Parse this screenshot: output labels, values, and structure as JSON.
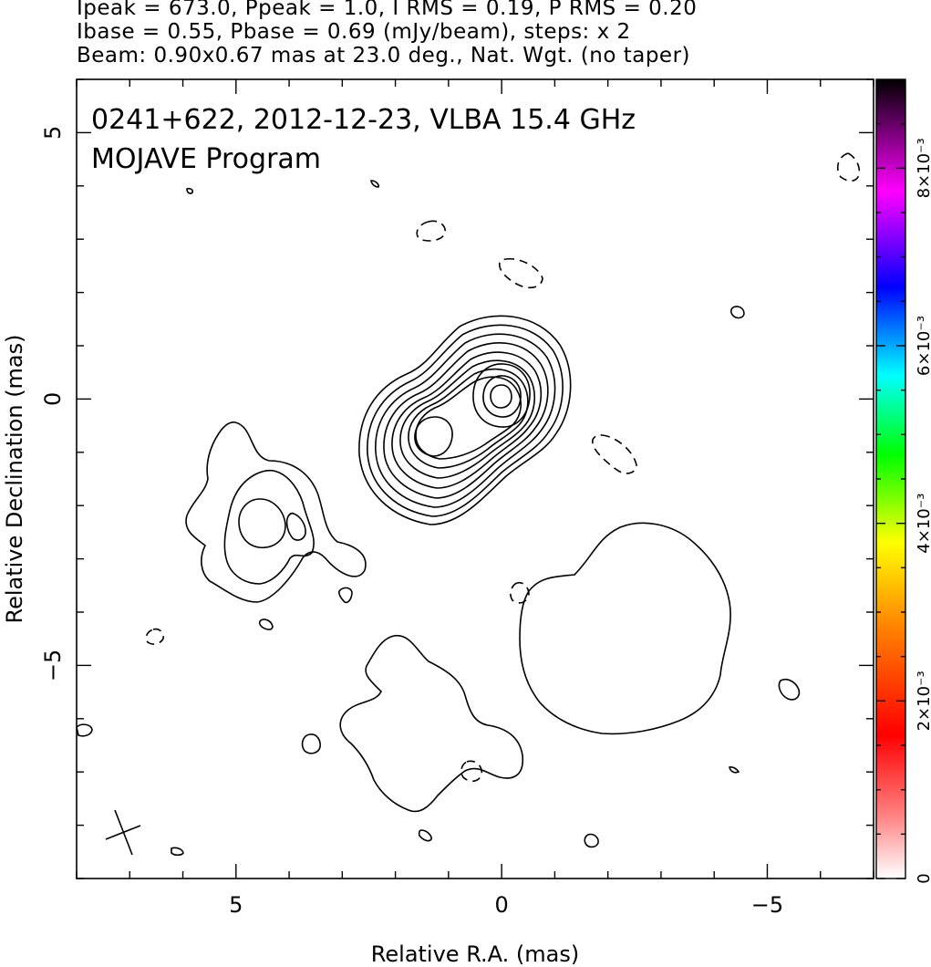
{
  "header": {
    "line1": "Ipeak = 673.0, Ppeak = 1.0, I RMS = 0.19, P RMS = 0.20",
    "line2": "Ibase = 0.55, Pbase = 0.69 (mJy/beam), steps: x 2",
    "line3": "Beam: 0.90x0.67 mas at 23.0 deg., Nat. Wgt. (no taper)"
  },
  "plot": {
    "title_line1": "0241+622, 2012-12-23, VLBA 15.4 GHz",
    "title_line2": "MOJAVE Program"
  },
  "chart_data": {
    "type": "contour",
    "title": "0241+622, 2012-12-23, VLBA 15.4 GHz",
    "subtitle": "MOJAVE Program",
    "xlabel": "Relative R.A. (mas)",
    "ylabel": "Relative Declination (mas)",
    "xlim": [
      8.0,
      -7.0
    ],
    "ylim": [
      -9.0,
      6.0
    ],
    "x_ticks": [
      5,
      0,
      -5
    ],
    "x_tick_labels": [
      "5",
      "0",
      "−5"
    ],
    "y_ticks": [
      5,
      0,
      -5
    ],
    "y_tick_labels": [
      "5",
      "0",
      "−5"
    ],
    "colorbar": {
      "range": [
        0,
        0.009
      ],
      "ticks": [
        0,
        0.002,
        0.004,
        0.006,
        0.008
      ],
      "tick_labels": [
        "0",
        "2×10⁻³",
        "4×10⁻³",
        "6×10⁻³",
        "8×10⁻³"
      ],
      "colors": [
        "#ffffff",
        "#ff0000",
        "#ff8800",
        "#ffff00",
        "#00ff00",
        "#00ffff",
        "#0000ff",
        "#ff00ff",
        "#000000"
      ]
    },
    "core": {
      "ra": 0.0,
      "dec": 0.0
    },
    "jet_component": {
      "ra": 1.3,
      "dec": -0.8
    },
    "beam": {
      "major_mas": 0.9,
      "minor_mas": 0.67,
      "pa_deg": 23.0,
      "center_ra": 7.2,
      "center_dec": -8.0
    },
    "grid": false
  }
}
